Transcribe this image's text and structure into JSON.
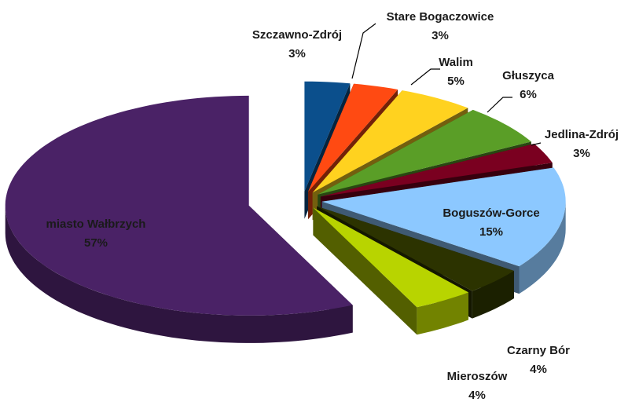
{
  "chart_data": {
    "type": "pie3d",
    "categories": [
      "Szczawno-Zdrój",
      "Stare Bogaczowice",
      "Walim",
      "Głuszyca",
      "Jedlina-Zdrój",
      "Boguszów-Gorce",
      "Czarny Bór",
      "Mieroszów",
      "miasto Wałbrzych"
    ],
    "values": [
      3,
      3,
      5,
      6,
      3,
      15,
      4,
      4,
      57
    ],
    "value_labels": [
      "3%",
      "3%",
      "5%",
      "6%",
      "3%",
      "15%",
      "4%",
      "4%",
      "57%"
    ],
    "colors": [
      "#0b4f8c",
      "#ff4a12",
      "#ffd21f",
      "#5a9e27",
      "#7a0020",
      "#8cc8ff",
      "#2c3300",
      "#b8d400",
      "#4a2266"
    ]
  }
}
